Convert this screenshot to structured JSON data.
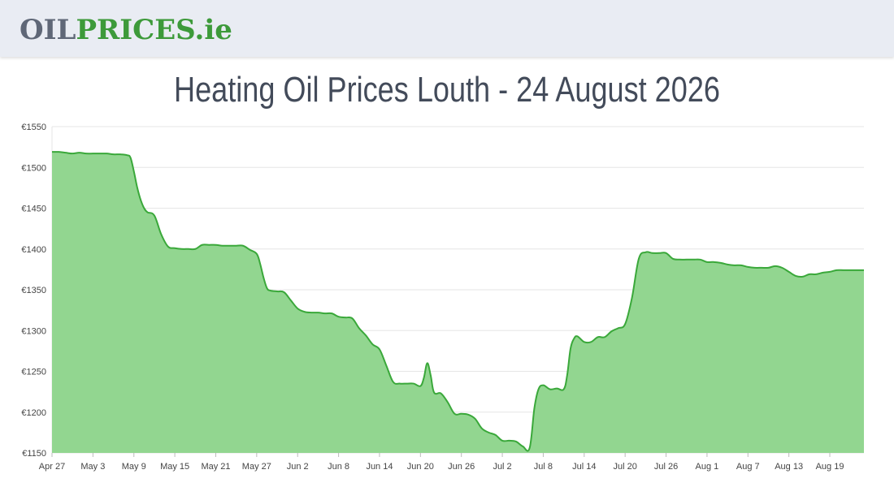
{
  "header": {
    "logo": {
      "part1": "OIL",
      "part2": "PRICES",
      "part3": ".ie"
    }
  },
  "title": "Heating Oil Prices Louth - 24 August 2026",
  "colors": {
    "line": "#3aa83a",
    "fill": "#92d690",
    "grid": "#e6e6e6"
  },
  "chart_data": {
    "type": "area",
    "title": "Heating Oil Prices Louth - 24 August 2026",
    "xlabel": "",
    "ylabel": "",
    "ylim": [
      1150,
      1550
    ],
    "y_ticks": [
      1150,
      1200,
      1250,
      1300,
      1350,
      1400,
      1450,
      1500,
      1550
    ],
    "y_tick_labels": [
      "€1150",
      "€1200",
      "€1250",
      "€1300",
      "€1350",
      "€1400",
      "€1450",
      "€1500",
      "€1550"
    ],
    "x_tick_labels": [
      "Apr 27",
      "May 3",
      "May 9",
      "May 15",
      "May 21",
      "May 27",
      "Jun 2",
      "Jun 8",
      "Jun 14",
      "Jun 20",
      "Jun 26",
      "Jul 2",
      "Jul 8",
      "Jul 14",
      "Jul 20",
      "Jul 26",
      "Aug 1",
      "Aug 7",
      "Aug 13",
      "Aug 19"
    ],
    "x_tick_days": [
      0,
      6,
      12,
      18,
      24,
      30,
      36,
      42,
      48,
      54,
      60,
      66,
      72,
      78,
      84,
      90,
      96,
      102,
      108,
      114
    ],
    "x_end_day": 119,
    "grid": true,
    "legend": "none",
    "series": [
      {
        "points": [
          [
            0,
            1519
          ],
          [
            1,
            1519
          ],
          [
            2,
            1518
          ],
          [
            3,
            1517
          ],
          [
            4,
            1518
          ],
          [
            5,
            1517
          ],
          [
            6,
            1517
          ],
          [
            7,
            1517
          ],
          [
            8,
            1517
          ],
          [
            9,
            1516
          ],
          [
            10,
            1516
          ],
          [
            11,
            1515
          ],
          [
            11.5,
            1512
          ],
          [
            12,
            1495
          ],
          [
            12.5,
            1475
          ],
          [
            13,
            1460
          ],
          [
            13.5,
            1450
          ],
          [
            14,
            1445
          ],
          [
            15,
            1441
          ],
          [
            16,
            1418
          ],
          [
            17,
            1403
          ],
          [
            18,
            1401
          ],
          [
            19,
            1400
          ],
          [
            20,
            1400
          ],
          [
            21,
            1400
          ],
          [
            22,
            1405
          ],
          [
            23,
            1405
          ],
          [
            24,
            1405
          ],
          [
            25,
            1404
          ],
          [
            26,
            1404
          ],
          [
            27,
            1404
          ],
          [
            28,
            1404
          ],
          [
            29,
            1399
          ],
          [
            30,
            1394
          ],
          [
            30.5,
            1382
          ],
          [
            31,
            1365
          ],
          [
            31.5,
            1352
          ],
          [
            32,
            1349
          ],
          [
            33,
            1348
          ],
          [
            34,
            1347
          ],
          [
            35,
            1337
          ],
          [
            36,
            1327
          ],
          [
            37,
            1323
          ],
          [
            38,
            1322
          ],
          [
            39,
            1322
          ],
          [
            40,
            1321
          ],
          [
            41,
            1321
          ],
          [
            42,
            1317
          ],
          [
            43,
            1316
          ],
          [
            44,
            1315
          ],
          [
            45,
            1303
          ],
          [
            46,
            1294
          ],
          [
            47,
            1283
          ],
          [
            48,
            1277
          ],
          [
            49,
            1257
          ],
          [
            50,
            1237
          ],
          [
            51,
            1235
          ],
          [
            52,
            1235
          ],
          [
            53,
            1235
          ],
          [
            54,
            1232
          ],
          [
            54.5,
            1242
          ],
          [
            55,
            1260
          ],
          [
            55.5,
            1245
          ],
          [
            56,
            1224
          ],
          [
            57,
            1223
          ],
          [
            58,
            1212
          ],
          [
            59,
            1198
          ],
          [
            60,
            1198
          ],
          [
            61,
            1197
          ],
          [
            62,
            1192
          ],
          [
            63,
            1180
          ],
          [
            64,
            1175
          ],
          [
            65,
            1172
          ],
          [
            66,
            1165
          ],
          [
            67,
            1165
          ],
          [
            68,
            1164
          ],
          [
            69,
            1158
          ],
          [
            70,
            1156
          ],
          [
            70.7,
            1205
          ],
          [
            71.3,
            1228
          ],
          [
            72,
            1233
          ],
          [
            73,
            1228
          ],
          [
            74,
            1229
          ],
          [
            75,
            1228
          ],
          [
            75.5,
            1245
          ],
          [
            76,
            1278
          ],
          [
            76.5,
            1290
          ],
          [
            77,
            1293
          ],
          [
            78,
            1286
          ],
          [
            79,
            1286
          ],
          [
            80,
            1292
          ],
          [
            81,
            1292
          ],
          [
            82,
            1299
          ],
          [
            83,
            1303
          ],
          [
            84,
            1308
          ],
          [
            85,
            1340
          ],
          [
            86,
            1388
          ],
          [
            87,
            1396
          ],
          [
            88,
            1395
          ],
          [
            89,
            1395
          ],
          [
            90,
            1395
          ],
          [
            91,
            1388
          ],
          [
            92,
            1387
          ],
          [
            93,
            1387
          ],
          [
            94,
            1387
          ],
          [
            95,
            1387
          ],
          [
            96,
            1384
          ],
          [
            97,
            1384
          ],
          [
            98,
            1383
          ],
          [
            99,
            1381
          ],
          [
            100,
            1380
          ],
          [
            101,
            1380
          ],
          [
            102,
            1378
          ],
          [
            103,
            1377
          ],
          [
            104,
            1377
          ],
          [
            105,
            1377
          ],
          [
            106,
            1379
          ],
          [
            107,
            1377
          ],
          [
            108,
            1372
          ],
          [
            109,
            1367
          ],
          [
            110,
            1366
          ],
          [
            111,
            1369
          ],
          [
            112,
            1369
          ],
          [
            113,
            1371
          ],
          [
            114,
            1372
          ],
          [
            115,
            1374
          ],
          [
            116,
            1374
          ],
          [
            117,
            1374
          ],
          [
            118,
            1374
          ],
          [
            119,
            1374
          ]
        ]
      }
    ]
  }
}
